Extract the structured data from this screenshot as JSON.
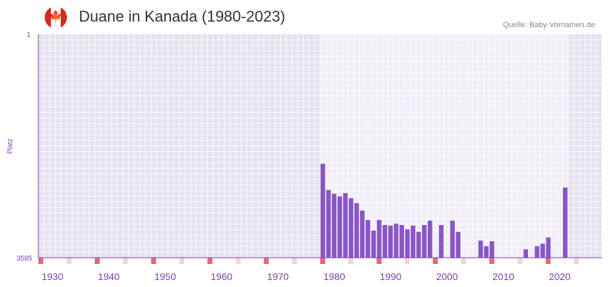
{
  "header": {
    "title": "Duane in Kanada (1980-2023)",
    "source": "Quelle: Baby-Vornamen.de",
    "flag_icon": "canada-flag-icon",
    "flag_glyph": "🍁"
  },
  "chart_data": {
    "type": "bar",
    "title": "Duane in Kanada (1980-2023)",
    "ylabel": "Platz",
    "y_reversed": true,
    "ylim": [
      1,
      3585
    ],
    "ytick_labels": [
      "1",
      "3585"
    ],
    "xlim": [
      1928,
      2028
    ],
    "xtick_labels": [
      "1930",
      "1940",
      "1950",
      "1960",
      "1970",
      "1980",
      "1990",
      "2000",
      "2010",
      "2020"
    ],
    "series": [
      {
        "name": "Platz",
        "x": [
          1978,
          1979,
          1980,
          1981,
          1982,
          1983,
          1984,
          1985,
          1986,
          1987,
          1988,
          1989,
          1990,
          1991,
          1992,
          1993,
          1994,
          1995,
          1996,
          1997,
          1999,
          2001,
          2002,
          2006,
          2007,
          2008,
          2014,
          2016,
          2017,
          2018,
          2021
        ],
        "values": [
          2080,
          2500,
          2560,
          2600,
          2550,
          2630,
          2710,
          2830,
          2980,
          3150,
          2980,
          3060,
          3070,
          3040,
          3060,
          3130,
          3070,
          3170,
          3060,
          2990,
          3060,
          2990,
          3170,
          3310,
          3400,
          3320,
          3450,
          3400,
          3360,
          3260,
          2460
        ]
      }
    ],
    "colors": {
      "bar": "#8a55c6",
      "axis": "#7b3fa6",
      "plot_background": "#e6e1ee",
      "highlight_background": "#f1eef7",
      "grid": "#ffffff",
      "decade_marker": "#e0697a",
      "year_marker": "#f4d3da",
      "tick_text": "#7b3fa6"
    },
    "highlight_range": [
      1978,
      2021
    ]
  }
}
